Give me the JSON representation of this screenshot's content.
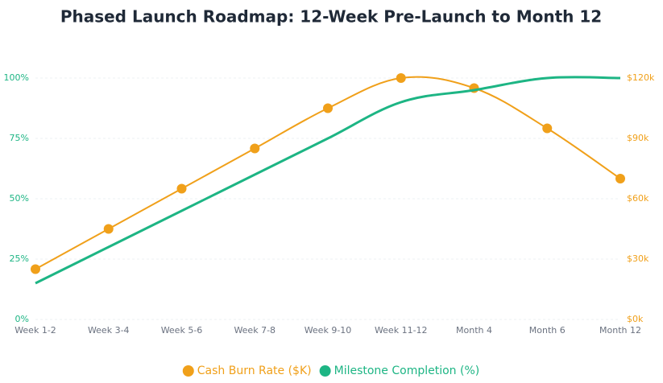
{
  "chart_data": {
    "type": "line",
    "title": "Phased Launch Roadmap: 12-Week Pre-Launch to Month 12",
    "categories": [
      "Week 1-2",
      "Week 3-4",
      "Week 5-6",
      "Week 7-8",
      "Week 9-10",
      "Week 11-12",
      "Month 4",
      "Month 6",
      "Month 12"
    ],
    "series": [
      {
        "name": "Cash Burn Rate ($K)",
        "color": "#f0a01a",
        "axis": "y2",
        "values": [
          25,
          45,
          65,
          85,
          105,
          120,
          115,
          95,
          70
        ]
      },
      {
        "name": "Milestone Completion (%)",
        "color": "#1db584",
        "values": [
          15,
          30,
          45,
          60,
          75,
          90,
          95,
          100,
          100
        ]
      }
    ],
    "ylim": [
      0,
      100
    ],
    "yticks": [
      {
        "value": 0,
        "label": "0%"
      },
      {
        "value": 25,
        "label": "25%"
      },
      {
        "value": 50,
        "label": "50%"
      },
      {
        "value": 75,
        "label": "75%"
      },
      {
        "value": 100,
        "label": "100%"
      }
    ],
    "y2lim": [
      0,
      120
    ],
    "y2ticks": [
      {
        "value": 0,
        "label": "$0k"
      },
      {
        "value": 30,
        "label": "$30k"
      },
      {
        "value": 60,
        "label": "$60k"
      },
      {
        "value": 90,
        "label": "$90k"
      },
      {
        "value": 120,
        "label": "$120k"
      }
    ],
    "grid": true
  }
}
